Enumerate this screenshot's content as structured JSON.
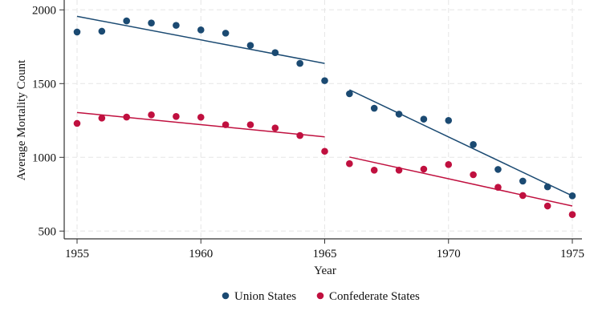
{
  "chart_data": {
    "type": "scatter",
    "xlabel": "Year",
    "ylabel": "Average Mortality Count",
    "xlim": [
      1955,
      1975
    ],
    "ylim": [
      500,
      2000
    ],
    "xticks": [
      1955,
      1960,
      1965,
      1970,
      1975
    ],
    "yticks": [
      500,
      1000,
      1500,
      2000
    ],
    "grid": true,
    "legend_position": "bottom",
    "colors": {
      "Union States": "#1b4a72",
      "Confederate States": "#c0103f"
    },
    "x": [
      1955,
      1956,
      1957,
      1958,
      1959,
      1960,
      1961,
      1962,
      1963,
      1964,
      1965,
      1966,
      1967,
      1968,
      1969,
      1970,
      1971,
      1972,
      1973,
      1974,
      1975
    ],
    "series": [
      {
        "name": "Union States",
        "values": [
          1850,
          1855,
          1925,
          1911,
          1895,
          1864,
          1842,
          1759,
          1710,
          1637,
          1520,
          1431,
          1333,
          1293,
          1259,
          1250,
          1087,
          918,
          839,
          800,
          739
        ],
        "fit_lines": [
          {
            "x": [
              1955,
              1965
            ],
            "y": [
              1956,
              1637
            ]
          },
          {
            "x": [
              1966,
              1975
            ],
            "y": [
              1458,
              739
            ]
          }
        ]
      },
      {
        "name": "Confederate States",
        "values": [
          1230,
          1266,
          1273,
          1288,
          1277,
          1272,
          1221,
          1221,
          1199,
          1148,
          1041,
          957,
          913,
          913,
          920,
          951,
          882,
          797,
          741,
          670,
          612
        ],
        "fit_lines": [
          {
            "x": [
              1955,
              1965
            ],
            "y": [
              1304,
              1139
            ]
          },
          {
            "x": [
              1966,
              1975
            ],
            "y": [
              1002,
              670
            ]
          }
        ]
      }
    ]
  }
}
